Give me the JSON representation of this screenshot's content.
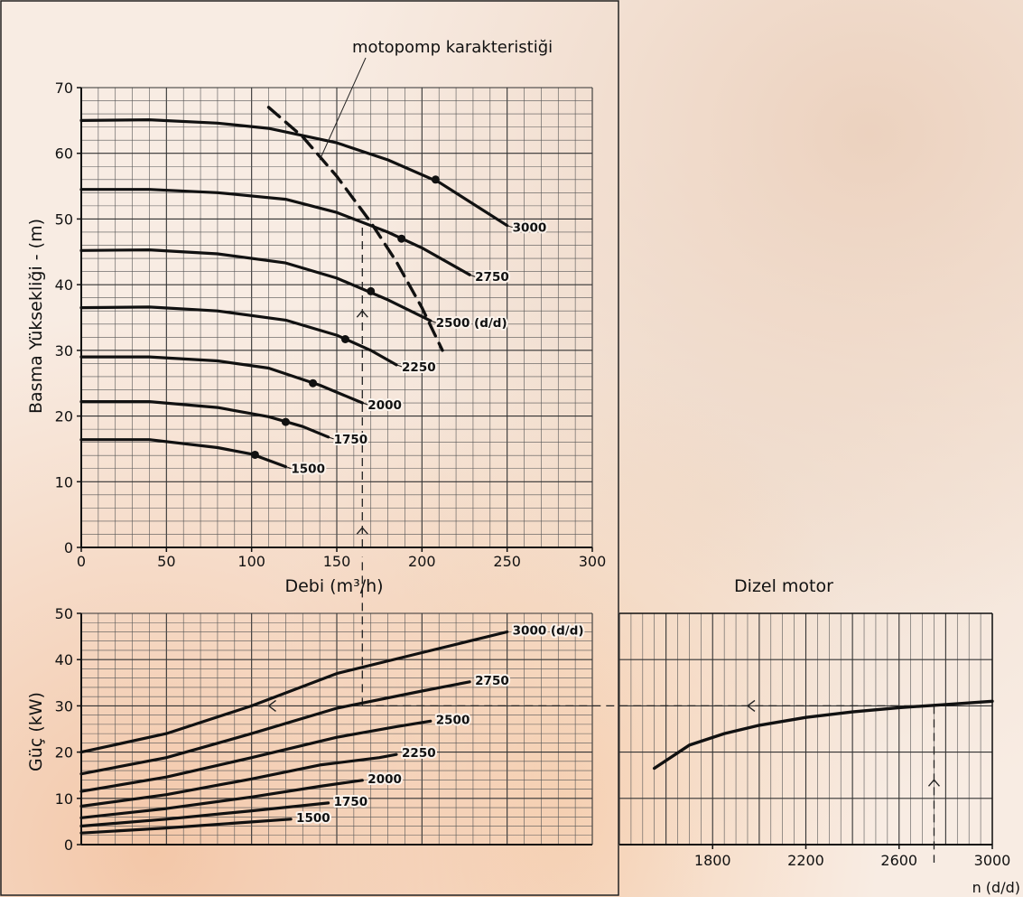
{
  "chart_data": [
    {
      "type": "line",
      "annotation": "motopomp karakteristiği",
      "xlabel": "Debi (m³/h)",
      "ylabel": "Basma Yüksekliği - (m)",
      "xlim": [
        0,
        300
      ],
      "ylim": [
        0,
        70
      ],
      "xticks": [
        "0",
        "50",
        "100",
        "150",
        "200",
        "250",
        "300"
      ],
      "yticks": [
        "0",
        "10",
        "20",
        "30",
        "40",
        "50",
        "60",
        "70"
      ],
      "series": [
        {
          "name": "3000",
          "x": [
            0,
            40,
            80,
            110,
            150,
            180,
            210,
            250
          ],
          "y": [
            65,
            65.1,
            64.6,
            63.8,
            61.6,
            59,
            55.6,
            49
          ],
          "marker": [
            208,
            56
          ]
        },
        {
          "name": "2750",
          "x": [
            0,
            40,
            80,
            120,
            150,
            180,
            200,
            228
          ],
          "y": [
            54.5,
            54.5,
            54,
            53,
            51,
            48,
            45.6,
            41.5
          ],
          "marker": [
            188,
            47
          ]
        },
        {
          "name": "2500 (d/d)",
          "x": [
            0,
            40,
            80,
            120,
            150,
            180,
            205
          ],
          "y": [
            45.2,
            45.3,
            44.7,
            43.3,
            41,
            37.7,
            34.5
          ],
          "marker": [
            170,
            39
          ]
        },
        {
          "name": "2250",
          "x": [
            0,
            40,
            80,
            120,
            150,
            170,
            185
          ],
          "y": [
            36.5,
            36.6,
            36,
            34.6,
            32.3,
            30,
            27.8
          ],
          "marker": [
            155,
            31.7
          ]
        },
        {
          "name": "2000",
          "x": [
            0,
            40,
            80,
            110,
            140,
            165
          ],
          "y": [
            29,
            29,
            28.4,
            27.3,
            24.7,
            22
          ],
          "marker": [
            136,
            25
          ]
        },
        {
          "name": "1750",
          "x": [
            0,
            40,
            80,
            110,
            130,
            145
          ],
          "y": [
            22.2,
            22.2,
            21.3,
            19.9,
            18.4,
            16.8
          ],
          "marker": [
            120,
            19.1
          ]
        },
        {
          "name": "1500",
          "x": [
            0,
            40,
            80,
            100,
            120
          ],
          "y": [
            16.4,
            16.4,
            15.2,
            14.2,
            12.3
          ],
          "marker": [
            102,
            14.1
          ]
        }
      ],
      "dashed_curve": {
        "label": "motopomp karakteristiği",
        "x": [
          110,
          130,
          150,
          170,
          185,
          200,
          212
        ],
        "y": [
          67,
          62.5,
          56.5,
          49.5,
          43.5,
          36.5,
          30
        ]
      },
      "operating_line": {
        "x": 165,
        "y_to": 49.5,
        "arrows_at_y": [
          3,
          36
        ]
      }
    },
    {
      "type": "line",
      "ylabel": "Güç (kW)",
      "xlim": [
        0,
        300
      ],
      "ylim": [
        0,
        50
      ],
      "yticks": [
        "0",
        "10",
        "20",
        "30",
        "40",
        "50"
      ],
      "series": [
        {
          "name": "3000 (d/d)",
          "x": [
            0,
            50,
            100,
            150,
            200,
            250
          ],
          "y": [
            20,
            24,
            30,
            37,
            41.5,
            46
          ]
        },
        {
          "name": "2750",
          "x": [
            0,
            50,
            100,
            150,
            200,
            228
          ],
          "y": [
            15.3,
            18.8,
            24,
            29.5,
            33.2,
            35.2
          ]
        },
        {
          "name": "2500",
          "x": [
            0,
            50,
            100,
            150,
            185,
            205
          ],
          "y": [
            11.5,
            14.6,
            18.8,
            23.2,
            25.5,
            26.7
          ]
        },
        {
          "name": "2250",
          "x": [
            0,
            50,
            100,
            140,
            175,
            185
          ],
          "y": [
            8.3,
            10.8,
            14.2,
            17.2,
            18.8,
            19.5
          ]
        },
        {
          "name": "2000",
          "x": [
            0,
            50,
            100,
            140,
            165
          ],
          "y": [
            5.8,
            7.8,
            10.3,
            12.6,
            13.9
          ]
        },
        {
          "name": "1750",
          "x": [
            0,
            50,
            100,
            145
          ],
          "y": [
            4,
            5.5,
            7.3,
            9
          ]
        },
        {
          "name": "1500",
          "x": [
            0,
            50,
            100,
            123
          ],
          "y": [
            2.5,
            3.6,
            4.9,
            5.5
          ]
        }
      ],
      "guide": {
        "x": 165,
        "y": 30
      }
    },
    {
      "type": "line",
      "title": "Dizel motor",
      "xlabel": "n (d/d)",
      "xlim": [
        1400,
        3000
      ],
      "ylim": [
        0,
        50
      ],
      "xticks": [
        "1800",
        "2200",
        "2600",
        "3000"
      ],
      "series": [
        {
          "name": "Dizel motor",
          "x": [
            1550,
            1700,
            1850,
            2000,
            2200,
            2400,
            2600,
            2800,
            3000
          ],
          "y": [
            16.5,
            21.5,
            24,
            25.8,
            27.5,
            28.7,
            29.6,
            30.3,
            31
          ]
        }
      ],
      "guide": {
        "x": 2750,
        "y": 30
      }
    }
  ]
}
